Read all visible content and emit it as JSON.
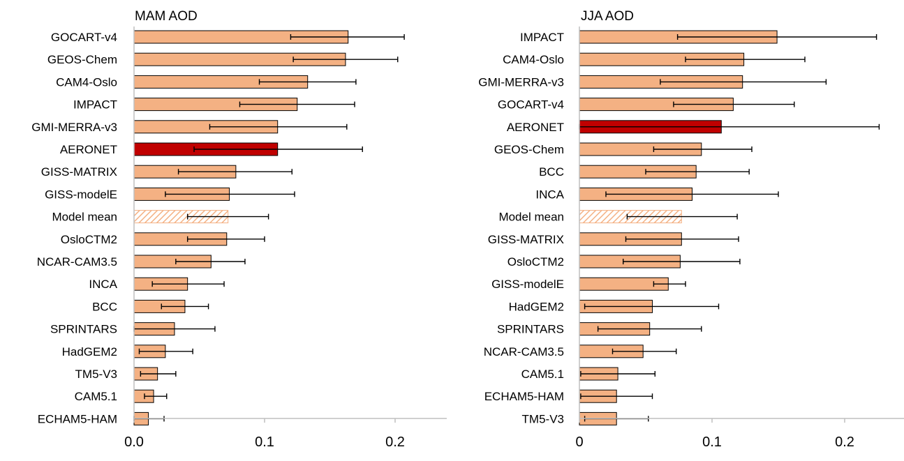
{
  "colors": {
    "model_bar": "#f4b183",
    "observation_bar": "#c00000",
    "mean_hatch": "#f4b183",
    "bar_outline": "#000000",
    "axis": "#bfbfbf"
  },
  "chart_data": [
    {
      "type": "bar",
      "orientation": "horizontal",
      "title": "MAM AOD",
      "xlim": [
        0,
        0.23
      ],
      "xticks": [
        0,
        0.1,
        0.2
      ],
      "xtick_labels": [
        "0.0",
        "0.1",
        "0.2"
      ],
      "grid": false,
      "categories": [
        "GOCART-v4",
        "GEOS-Chem",
        "CAM4-Oslo",
        "IMPACT",
        "GMI-MERRA-v3",
        "AERONET",
        "GISS-MATRIX",
        "GISS-modelE",
        "Model mean",
        "OsloCTM2",
        "NCAR-CAM3.5",
        "INCA",
        "BCC",
        "SPRINTARS",
        "HadGEM2",
        "TM5-V3",
        "CAM5.1",
        "ECHAM5-HAM"
      ],
      "values": [
        0.164,
        0.162,
        0.133,
        0.125,
        0.11,
        0.11,
        0.078,
        0.073,
        0.072,
        0.071,
        0.059,
        0.041,
        0.039,
        0.031,
        0.024,
        0.018,
        0.015,
        0.011
      ],
      "err_low": [
        0.12,
        0.122,
        0.096,
        0.081,
        0.058,
        0.046,
        0.034,
        0.024,
        0.041,
        0.041,
        0.032,
        0.014,
        0.021,
        0.0,
        0.004,
        0.005,
        0.008,
        0.0
      ],
      "err_high": [
        0.207,
        0.202,
        0.17,
        0.169,
        0.163,
        0.175,
        0.121,
        0.123,
        0.103,
        0.1,
        0.085,
        0.069,
        0.057,
        0.062,
        0.045,
        0.032,
        0.025,
        0.023
      ],
      "highlight": [
        "AERONET"
      ],
      "hatched": [
        "Model mean"
      ]
    },
    {
      "type": "bar",
      "orientation": "horizontal",
      "title": "JJA AOD",
      "xlim": [
        0,
        0.245
      ],
      "xticks": [
        0,
        0.1,
        0.2
      ],
      "xtick_labels": [
        "0",
        "0.1",
        "0.2"
      ],
      "grid": false,
      "categories": [
        "IMPACT",
        "CAM4-Oslo",
        "GMI-MERRA-v3",
        "GOCART-v4",
        "AERONET",
        "GEOS-Chem",
        "BCC",
        "INCA",
        "Model mean",
        "GISS-MATRIX",
        "OsloCTM2",
        "GISS-modelE",
        "HadGEM2",
        "SPRINTARS",
        "NCAR-CAM3.5",
        "CAM5.1",
        "ECHAM5-HAM",
        "TM5-V3"
      ],
      "values": [
        0.149,
        0.124,
        0.123,
        0.116,
        0.107,
        0.092,
        0.088,
        0.085,
        0.077,
        0.077,
        0.076,
        0.067,
        0.055,
        0.053,
        0.048,
        0.029,
        0.028,
        0.028
      ],
      "err_low": [
        0.074,
        0.08,
        0.061,
        0.071,
        0.0,
        0.056,
        0.05,
        0.02,
        0.036,
        0.035,
        0.033,
        0.056,
        0.004,
        0.014,
        0.025,
        0.001,
        0.001,
        0.004
      ],
      "err_high": [
        0.224,
        0.17,
        0.186,
        0.162,
        0.226,
        0.13,
        0.128,
        0.15,
        0.119,
        0.12,
        0.121,
        0.08,
        0.105,
        0.092,
        0.073,
        0.057,
        0.055,
        0.052
      ],
      "highlight": [
        "AERONET"
      ],
      "hatched": [
        "Model mean"
      ]
    }
  ]
}
